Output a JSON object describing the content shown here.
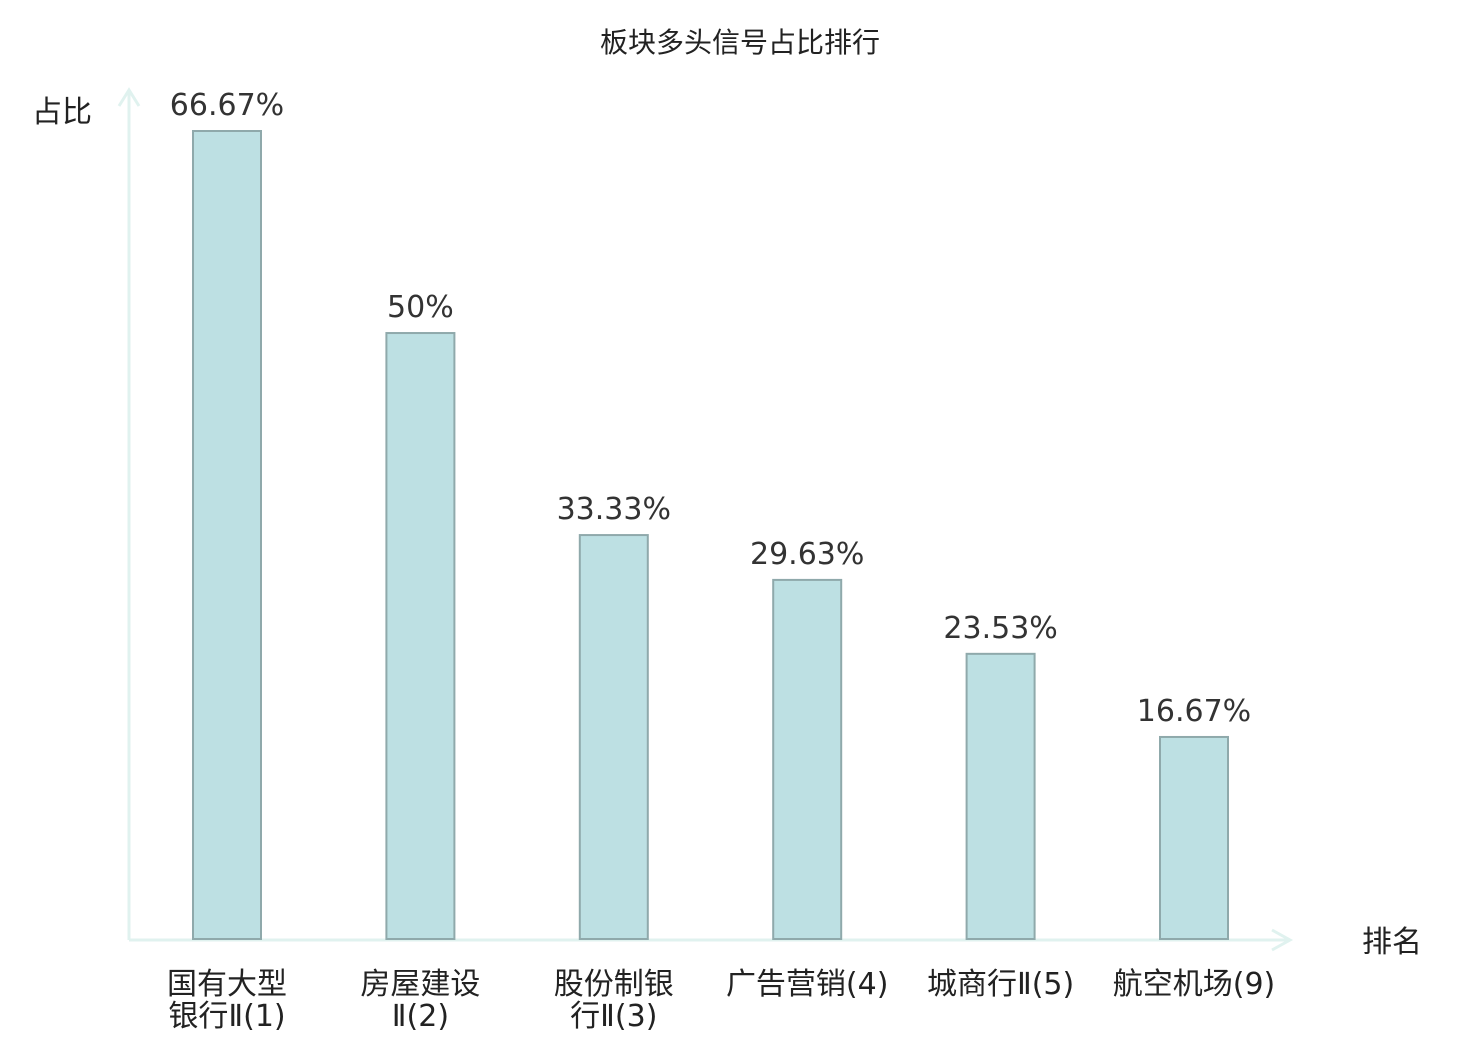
{
  "chart_data": {
    "type": "bar",
    "title": "板块多头信号占比排行",
    "ylabel": "占比",
    "xlabel": "排名",
    "ylim": [
      0,
      70
    ],
    "grid": false,
    "legend": "none",
    "categories": [
      {
        "lines": [
          "国有大型",
          "银行Ⅱ(1)"
        ],
        "highlight": false
      },
      {
        "lines": [
          "房屋建设",
          "Ⅱ(2)"
        ],
        "highlight": false
      },
      {
        "lines": [
          "股份制银",
          "行Ⅱ(3)"
        ],
        "highlight": false
      },
      {
        "lines": [
          "广告营销(4)"
        ],
        "highlight": false
      },
      {
        "lines": [
          "城商行Ⅱ(5)"
        ],
        "highlight": false
      },
      {
        "lines": [
          "航空机场(9)"
        ],
        "highlight": true
      }
    ],
    "values": [
      66.67,
      50,
      33.33,
      29.63,
      23.53,
      16.67
    ],
    "value_labels": [
      "66.67%",
      "50%",
      "33.33%",
      "29.63%",
      "23.53%",
      "16.67%"
    ],
    "colors": {
      "bar_fill": "#bde0e3",
      "bar_stroke": "#8fa9ab",
      "axis": "#e0f2ef",
      "label_text": "#222222",
      "highlight_text": "#e02020"
    }
  }
}
